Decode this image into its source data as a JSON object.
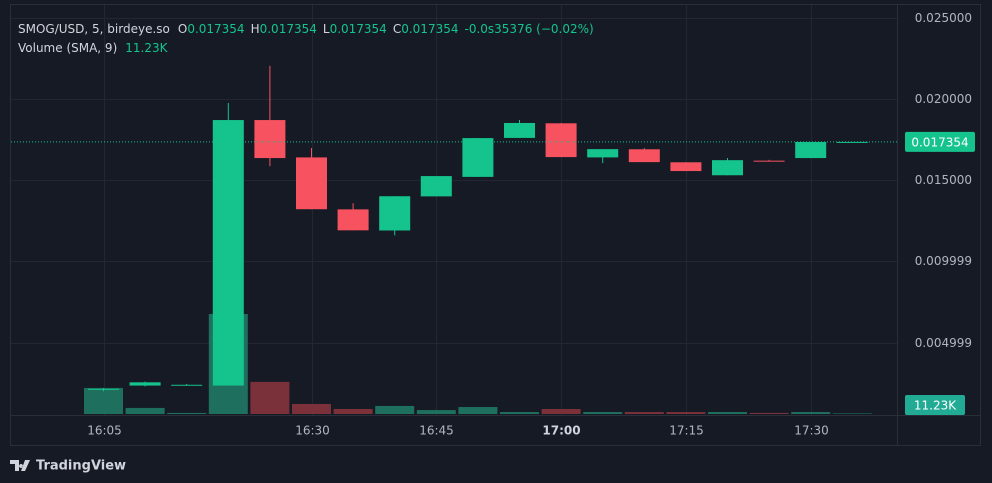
{
  "chart_data": {
    "type": "candlestick",
    "title": "SMOG/USD, 5, birdeye.so",
    "categories": [
      "16:05",
      null,
      null,
      null,
      null,
      "16:30",
      null,
      null,
      "16:45",
      null,
      null,
      "17:00",
      null,
      null,
      "17:15",
      null,
      null,
      "17:30",
      null
    ],
    "open": [
      0.0021,
      0.00235,
      0.0024,
      0.00235,
      0.0187,
      0.0164,
      0.0132,
      0.0119,
      0.014,
      0.0152,
      0.0176,
      0.0185,
      0.0164,
      0.0169,
      0.0161,
      0.0153,
      0.0162,
      0.01636,
      0.017354
    ],
    "high": [
      0.0022,
      0.0026,
      0.00245,
      0.01975,
      0.02204,
      0.01698,
      0.01358,
      0.01401,
      0.01525,
      0.01759,
      0.0187,
      0.01852,
      0.01691,
      0.01697,
      0.01611,
      0.01636,
      0.01625,
      0.01735,
      0.017354
    ],
    "low": [
      0.002,
      0.0023,
      0.00235,
      0.00235,
      0.01586,
      0.01321,
      0.01191,
      0.0116,
      0.014,
      0.0152,
      0.0176,
      0.01642,
      0.01605,
      0.01611,
      0.01556,
      0.0153,
      0.01617,
      0.01636,
      0.017354
    ],
    "close": [
      0.00215,
      0.00255,
      0.0024,
      0.0187,
      0.01636,
      0.01321,
      0.01191,
      0.01401,
      0.01525,
      0.01759,
      0.01852,
      0.01642,
      0.01691,
      0.01611,
      0.01556,
      0.01623,
      0.01617,
      0.01735,
      0.017354
    ],
    "volume": [
      146000,
      34000,
      6000,
      560000,
      180000,
      56000,
      28000,
      45000,
      22000,
      39000,
      11000,
      28000,
      11000,
      11000,
      11000,
      11000,
      6000,
      11000,
      3000
    ],
    "volume_name": "Volume (SMA, 9)",
    "volume_sma": {
      "value": 11230,
      "label": "11.23K"
    },
    "change": "-0.0s35376 (−0.02%)",
    "ohlc_letters": [
      "O",
      "H",
      "L",
      "C"
    ],
    "ylim": [
      0.0006,
      0.0256
    ],
    "yticks": [
      {
        "value": 0.025,
        "label": "0.025000"
      },
      {
        "value": 0.02,
        "label": "0.020000"
      },
      {
        "value": 0.015,
        "label": "0.015000"
      },
      {
        "value": 0.009999,
        "label": "0.009999"
      },
      {
        "value": 0.004999,
        "label": "0.004999"
      }
    ],
    "grid": true,
    "up_color": "#15c48d",
    "down_color": "#f7525f",
    "volume_up_color": "#1f6f5e",
    "volume_down_color": "#7b3139",
    "branding": "TradingView"
  }
}
